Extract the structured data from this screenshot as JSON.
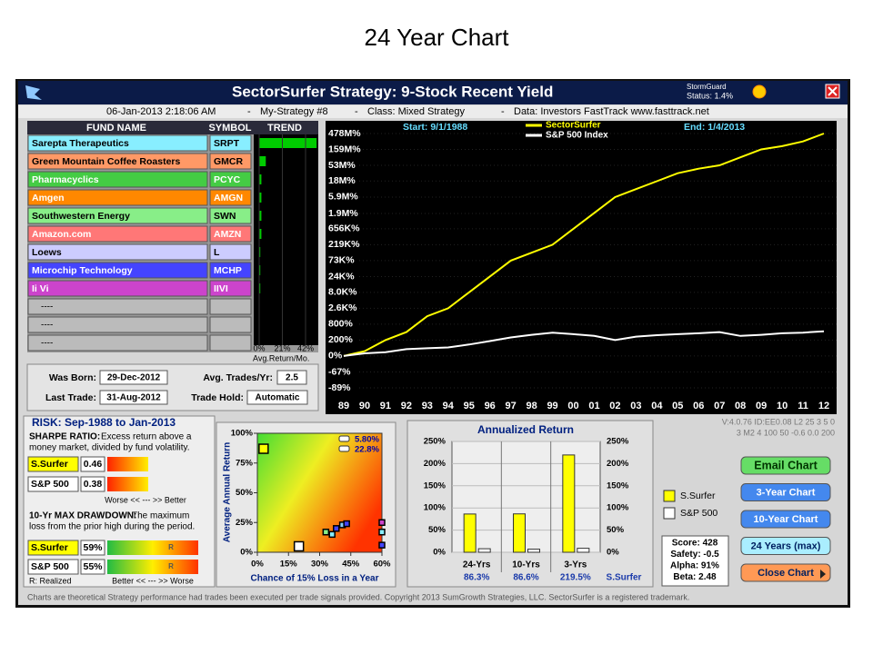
{
  "slide_title": "24 Year Chart",
  "window": {
    "title": "SectorSurfer Strategy:  9-Stock Recent Yield",
    "stormguard": "StormGuard",
    "stormguard_status": "Status: 1.4%"
  },
  "info_bar": {
    "datetime": "06-Jan-2013  2:18:06 AM",
    "separator": "-",
    "strategy": "My-Strategy #8",
    "class": "Class: Mixed Strategy",
    "data": "Data: Investors FastTrack www.fasttrack.net"
  },
  "fund_table": {
    "headers": [
      "FUND NAME",
      "SYMBOL",
      "TREND"
    ],
    "rows": [
      {
        "name": "Sarepta Therapeutics",
        "symbol": "SRPT",
        "trend": 52,
        "color": "#88eeff",
        "text_color": "#000000"
      },
      {
        "name": "Green Mountain Coffee Roasters",
        "symbol": "GMCR",
        "trend": 6,
        "color": "#ff9966",
        "text_color": "#000000"
      },
      {
        "name": "Pharmacyclics",
        "symbol": "PCYC",
        "trend": 2,
        "color": "#44cc44",
        "text_color": "#ffffff"
      },
      {
        "name": "Amgen",
        "symbol": "AMGN",
        "trend": 2,
        "color": "#ff8800",
        "text_color": "#ffffff"
      },
      {
        "name": "Southwestern Energy",
        "symbol": "SWN",
        "trend": 2,
        "color": "#88ee88",
        "text_color": "#000000"
      },
      {
        "name": "Amazon.com",
        "symbol": "AMZN",
        "trend": 2,
        "color": "#ff7777",
        "text_color": "#ffffff"
      },
      {
        "name": "Loews",
        "symbol": "L",
        "trend": 1,
        "color": "#ccccff",
        "text_color": "#000000"
      },
      {
        "name": "Microchip Technology",
        "symbol": "MCHP",
        "trend": 1,
        "color": "#4444ff",
        "text_color": "#ffffff"
      },
      {
        "name": "Ii Vi",
        "symbol": "IIVI",
        "trend": 1,
        "color": "#cc44cc",
        "text_color": "#ffffff"
      }
    ],
    "empty_rows": [
      "----",
      "----",
      "----"
    ],
    "trend_color": "#00cc00",
    "trend_ticks": [
      {
        "value": 0,
        "label": "0%"
      },
      {
        "value": 21,
        "label": "21%"
      },
      {
        "value": 42,
        "label": "42%"
      }
    ],
    "trend_axis_label": "Avg.Return/Mo."
  },
  "dates": {
    "born_label": "Was Born:",
    "born": "29-Dec-2012",
    "trades_label": "Avg. Trades/Yr:",
    "trades": "2.5",
    "last_label": "Last Trade:",
    "last": "31-Aug-2012",
    "hold_label": "Trade Hold:",
    "hold": "Automatic"
  },
  "main_chart": {
    "type": "line",
    "scale": "log",
    "start": "Start: 9/1/1988",
    "end": "End: 1/4/2013",
    "categories": [
      "89",
      "90",
      "91",
      "92",
      "93",
      "94",
      "95",
      "96",
      "97",
      "98",
      "99",
      "00",
      "01",
      "02",
      "03",
      "04",
      "05",
      "06",
      "07",
      "08",
      "09",
      "10",
      "11",
      "12"
    ],
    "ylim": [
      -89,
      478000000
    ],
    "yticks": [
      {
        "value": 478000000,
        "label": "478M%"
      },
      {
        "value": 159000000,
        "label": "159M%"
      },
      {
        "value": 53000000,
        "label": "53M%"
      },
      {
        "value": 18000000,
        "label": "18M%"
      },
      {
        "value": 5900000,
        "label": "5.9M%"
      },
      {
        "value": 1900000,
        "label": "1.9M%"
      },
      {
        "value": 656000,
        "label": "656K%"
      },
      {
        "value": 219000,
        "label": "219K%"
      },
      {
        "value": 73000,
        "label": "73K%"
      },
      {
        "value": 24000,
        "label": "24K%"
      },
      {
        "value": 8000,
        "label": "8.0K%"
      },
      {
        "value": 2600,
        "label": "2.6K%"
      },
      {
        "value": 800,
        "label": "800%"
      },
      {
        "value": 200,
        "label": "200%"
      },
      {
        "value": 0,
        "label": "0%"
      },
      {
        "value": -67,
        "label": "-67%"
      },
      {
        "value": -89,
        "label": "-89%"
      }
    ],
    "series": [
      {
        "name": "SectorSurfer",
        "color": "#ffff00",
        "values": [
          0,
          39,
          200,
          420,
          1460,
          2600,
          8000,
          24200,
          72800,
          126000,
          218600,
          656000,
          1968000,
          5905000,
          10230000,
          17715000,
          30680000,
          42000000,
          53144000,
          92000000,
          159000000,
          200000000,
          276000000,
          478000000
        ]
      },
      {
        "name": "S&P 500 Index",
        "color": "#ffffff",
        "values": [
          0,
          20,
          30,
          60,
          70,
          80,
          120,
          180,
          260,
          330,
          400,
          350,
          300,
          200,
          280,
          320,
          350,
          380,
          420,
          300,
          330,
          380,
          400,
          450
        ]
      }
    ]
  },
  "risk": {
    "title": "RISK: Sep-1988  to  Jan-2013",
    "sharpe": {
      "heading": "SHARPE RATIO:",
      "text_lines": [
        "Excess return above a",
        "money market, divided by fund volatility."
      ],
      "rows": [
        {
          "name": "S.Surfer",
          "value": 0.46
        },
        {
          "name": "S&P 500",
          "value": 0.38
        }
      ],
      "scale": "Worse  <<  ---  >>  Better"
    },
    "drawdown": {
      "heading": "10-Yr MAX DRAWDOWN:",
      "text_lines": [
        "The maximum",
        "loss from the prior high during the period."
      ],
      "rows": [
        {
          "name": "S.Surfer",
          "value": 59,
          "value_label": "59%",
          "marker": "R"
        },
        {
          "name": "S&P 500",
          "value": 55,
          "value_label": "55%",
          "marker": "R"
        }
      ],
      "note": "R: Realized",
      "scale": "Better  <<  ---  >>  Worse"
    }
  },
  "scatter": {
    "type": "scatter",
    "ylabel": "Average Annual Return",
    "xlabel": "Chance of 15% Loss in a Year",
    "xlim": [
      0,
      60
    ],
    "ylim": [
      0,
      100
    ],
    "xticks": [
      {
        "value": 0,
        "label": "0%"
      },
      {
        "value": 15,
        "label": "15%"
      },
      {
        "value": 30,
        "label": "30%"
      },
      {
        "value": 45,
        "label": "45%"
      },
      {
        "value": 60,
        "label": "60%"
      }
    ],
    "yticks": [
      {
        "value": 0,
        "label": "0%"
      },
      {
        "value": 25,
        "label": "25%"
      },
      {
        "value": 50,
        "label": "50%"
      },
      {
        "value": 75,
        "label": "75%"
      },
      {
        "value": 100,
        "label": "100%"
      }
    ],
    "legend_values": [
      {
        "value": 5.8,
        "label": "5.80%"
      },
      {
        "value": 22.8,
        "label": "22.8%"
      }
    ],
    "points": [
      {
        "x": 3,
        "y": 87,
        "color": "#ffff00",
        "size": 10
      },
      {
        "x": 20,
        "y": 5,
        "color": "#ffffff",
        "size": 10
      },
      {
        "x": 33,
        "y": 17,
        "color": "#88ee88",
        "size": 6
      },
      {
        "x": 36,
        "y": 15,
        "color": "#88eeff",
        "size": 6
      },
      {
        "x": 38,
        "y": 20,
        "color": "#4444ff",
        "size": 6
      },
      {
        "x": 41,
        "y": 23,
        "color": "#88ccff",
        "size": 6
      },
      {
        "x": 43,
        "y": 24,
        "color": "#4444ff",
        "size": 6
      },
      {
        "x": 60,
        "y": 25,
        "color": "#cc44cc",
        "size": 6
      },
      {
        "x": 60,
        "y": 17,
        "color": "#88eeff",
        "size": 6
      },
      {
        "x": 60,
        "y": 6,
        "color": "#4444ff",
        "size": 6
      }
    ]
  },
  "annual": {
    "type": "bar",
    "title": "Annualized Return",
    "categories": [
      "24-Yrs",
      "10-Yrs",
      "3-Yrs"
    ],
    "ylim": [
      0,
      250
    ],
    "yticks": [
      {
        "value": 0,
        "label": "0%"
      },
      {
        "value": 50,
        "label": "50%"
      },
      {
        "value": 100,
        "label": "100%"
      },
      {
        "value": 150,
        "label": "150%"
      },
      {
        "value": 200,
        "label": "200%"
      },
      {
        "value": 250,
        "label": "250%"
      }
    ],
    "series": [
      {
        "name": "S.Surfer",
        "color": "#ffff00",
        "values": [
          86.3,
          86.6,
          219.5
        ],
        "value_labels": [
          "86.3%",
          "86.6%",
          "219.5%"
        ]
      },
      {
        "name": "S&P 500",
        "color": "#ffffff",
        "values": [
          8,
          7,
          9
        ]
      }
    ],
    "footer": "S.Surfer"
  },
  "stats": [
    "Score: 428",
    "Safety: -0.5",
    "Alpha: 91%",
    "Beta: 2.48"
  ],
  "version_lines": [
    "V:4.0.76 ID:EE0.08 L2 25 3 5 0",
    "3 M2 4 100 50 -0.6 0.0 200"
  ],
  "buttons": [
    {
      "label": "Email Chart",
      "color": "#66dd66"
    },
    {
      "label": "3-Year Chart",
      "color": "#4488ee"
    },
    {
      "label": "10-Year Chart",
      "color": "#4488ee"
    },
    {
      "label": "24 Years (max)",
      "color": "#aaeeff"
    },
    {
      "label": "Close Chart",
      "color": "#ff9955"
    }
  ],
  "footer": "Charts are theoretical Strategy performance had trades been executed per trade signals provided.  Copyright 2013 SumGrowth Strategies, LLC.  SectorSurfer is a registered trademark."
}
